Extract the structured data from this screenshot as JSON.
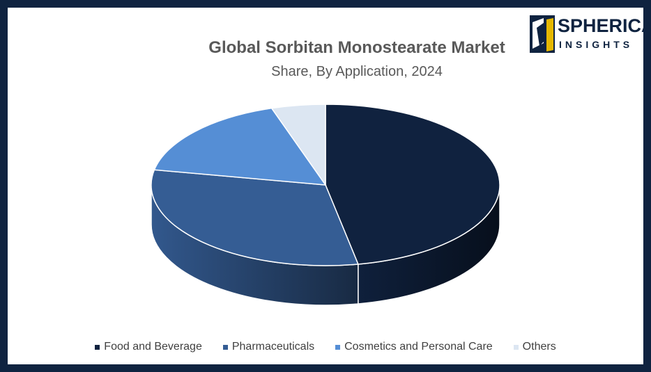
{
  "logo": {
    "line1": "SPHERICAL",
    "line2": "INSIGHTS"
  },
  "chart_data": {
    "type": "pie",
    "title": "Global Sorbitan Monostearate Market",
    "subtitle": "Share, By Application, 2024",
    "three_d": true,
    "legend_position": "bottom",
    "slices": [
      {
        "name": "Food and Beverage",
        "value": 47,
        "color": "#10223f"
      },
      {
        "name": "Pharmaceuticals",
        "value": 31,
        "color": "#355d94"
      },
      {
        "name": "Cosmetics and Personal Care",
        "value": 17,
        "color": "#558ed5"
      },
      {
        "name": "Others",
        "value": 5,
        "color": "#dce6f2"
      }
    ]
  }
}
